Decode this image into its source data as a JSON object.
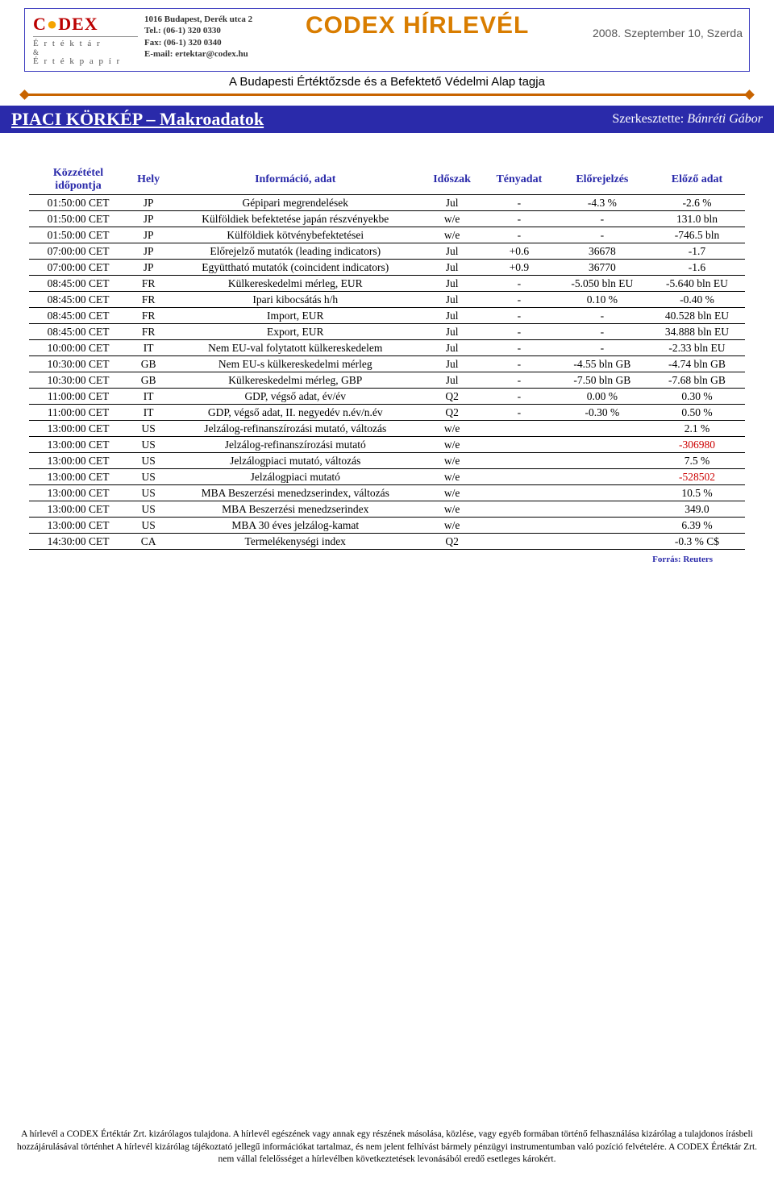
{
  "header": {
    "logo_main": "C",
    "logo_main2": "DEX",
    "logo_sub1": "É r t é k t á r",
    "logo_sub2": "É r t é k p a p í r",
    "contact_l1": "1016 Budapest, Derék utca 2",
    "contact_l2": "Tel.: (06-1) 320 0330",
    "contact_l3": "Fax: (06-1) 320 0340",
    "contact_l4": "E-mail: ertektar@codex.hu",
    "title": "CODEX HÍRLEVÉL",
    "date": "2008. Szeptember 10, Szerda",
    "subtitle": "A Budapesti Értéktőzsde és a Befektető Védelmi Alap tagja"
  },
  "section": {
    "left": "PIACI KÖRKÉP – Makroadatok",
    "right_label": "Szerkesztette: ",
    "right_name": "Bánréti Gábor"
  },
  "columns": [
    "Közzététel időpontja",
    "Hely",
    "Információ, adat",
    "Időszak",
    "Tényadat",
    "Előrejelzés",
    "Előző adat"
  ],
  "rows": [
    {
      "t": "01:50:00 CET",
      "h": "JP",
      "i": "Gépipari megrendelések",
      "p": "Jul",
      "a": "-",
      "f": "-4.3 %",
      "pr": "-2.6 %"
    },
    {
      "t": "01:50:00 CET",
      "h": "JP",
      "i": "Külföldiek befektetése japán részvényekbe",
      "p": "w/e",
      "a": "-",
      "f": "-",
      "pr": "131.0 bln"
    },
    {
      "t": "01:50:00 CET",
      "h": "JP",
      "i": "Külföldiek kötvénybefektetései",
      "p": "w/e",
      "a": "-",
      "f": "-",
      "pr": "-746.5 bln"
    },
    {
      "t": "07:00:00 CET",
      "h": "JP",
      "i": "Előrejelző mutatók (leading indicators)",
      "p": "Jul",
      "a": "+0.6",
      "f": "36678",
      "pr": "-1.7"
    },
    {
      "t": "07:00:00 CET",
      "h": "JP",
      "i": "Együttható mutatók (coincident indicators)",
      "p": "Jul",
      "a": "+0.9",
      "f": "36770",
      "pr": "-1.6"
    },
    {
      "t": "08:45:00 CET",
      "h": "FR",
      "i": "Külkereskedelmi mérleg, EUR",
      "p": "Jul",
      "a": "-",
      "f": "-5.050 bln EU",
      "pr": "-5.640 bln EU"
    },
    {
      "t": "08:45:00 CET",
      "h": "FR",
      "i": "Ipari kibocsátás h/h",
      "p": "Jul",
      "a": "-",
      "f": "0.10 %",
      "pr": "-0.40 %"
    },
    {
      "t": "08:45:00 CET",
      "h": "FR",
      "i": "Import, EUR",
      "p": "Jul",
      "a": "-",
      "f": "-",
      "pr": "40.528 bln EU"
    },
    {
      "t": "08:45:00 CET",
      "h": "FR",
      "i": "Export, EUR",
      "p": "Jul",
      "a": "-",
      "f": "-",
      "pr": "34.888 bln EU"
    },
    {
      "t": "10:00:00 CET",
      "h": "IT",
      "i": "Nem EU-val folytatott külkereskedelem",
      "p": "Jul",
      "a": "-",
      "f": "-",
      "pr": "-2.33 bln EU"
    },
    {
      "t": "10:30:00 CET",
      "h": "GB",
      "i": "Nem EU-s külkereskedelmi mérleg",
      "p": "Jul",
      "a": "-",
      "f": "-4.55 bln GB",
      "pr": "-4.74 bln GB"
    },
    {
      "t": "10:30:00 CET",
      "h": "GB",
      "i": "Külkereskedelmi mérleg, GBP",
      "p": "Jul",
      "a": "-",
      "f": "-7.50 bln GB",
      "pr": "-7.68 bln GB"
    },
    {
      "t": "11:00:00 CET",
      "h": "IT",
      "i": "GDP, végső adat, év/év",
      "p": "Q2",
      "a": "-",
      "f": "0.00 %",
      "pr": "0.30 %"
    },
    {
      "t": "11:00:00 CET",
      "h": "IT",
      "i": "GDP, végső adat, II. negyedév n.év/n.év",
      "p": "Q2",
      "a": "-",
      "f": "-0.30 %",
      "pr": "0.50 %"
    },
    {
      "t": "13:00:00 CET",
      "h": "US",
      "i": "Jelzálog-refinanszírozási mutató, változás",
      "p": "w/e",
      "a": "",
      "f": "",
      "pr": "2.1 %"
    },
    {
      "t": "13:00:00 CET",
      "h": "US",
      "i": "Jelzálog-refinanszírozási mutató",
      "p": "w/e",
      "a": "",
      "f": "",
      "pr": "-306980",
      "pr_red": true
    },
    {
      "t": "13:00:00 CET",
      "h": "US",
      "i": "Jelzálogpiaci mutató, változás",
      "p": "w/e",
      "a": "",
      "f": "",
      "pr": "7.5 %"
    },
    {
      "t": "13:00:00 CET",
      "h": "US",
      "i": "Jelzálogpiaci mutató",
      "p": "w/e",
      "a": "",
      "f": "",
      "pr": "-528502",
      "pr_red": true
    },
    {
      "t": "13:00:00 CET",
      "h": "US",
      "i": "MBA Beszerzési menedzserindex, változás",
      "p": "w/e",
      "a": "",
      "f": "",
      "pr": "10.5 %"
    },
    {
      "t": "13:00:00 CET",
      "h": "US",
      "i": "MBA Beszerzési menedzserindex",
      "p": "w/e",
      "a": "",
      "f": "",
      "pr": "349.0"
    },
    {
      "t": "13:00:00 CET",
      "h": "US",
      "i": "MBA 30 éves jelzálog-kamat",
      "p": "w/e",
      "a": "",
      "f": "",
      "pr": "6.39 %"
    },
    {
      "t": "14:30:00 CET",
      "h": "CA",
      "i": "Termelékenységi index",
      "p": "Q2",
      "a": "",
      "f": "",
      "pr": "-0.3 % C$"
    }
  ],
  "source": "Forrás: Reuters",
  "footer": "A hírlevél a CODEX Értéktár Zrt. kizárólagos tulajdona. A hírlevél egészének vagy annak egy részének másolása, közlése, vagy egyéb formában történő felhasználása kizárólag a tulajdonos írásbeli hozzájárulásával történhet A hírlevél kizárólag tájékoztató jellegű információkat tartalmaz, és nem jelent felhívást bármely pénzügyi instrumentumban való pozíció felvételére. A CODEX Értéktár Zrt. nem vállal felelősséget a hírlevélben következtetések levonásából eredő esetleges károkért."
}
